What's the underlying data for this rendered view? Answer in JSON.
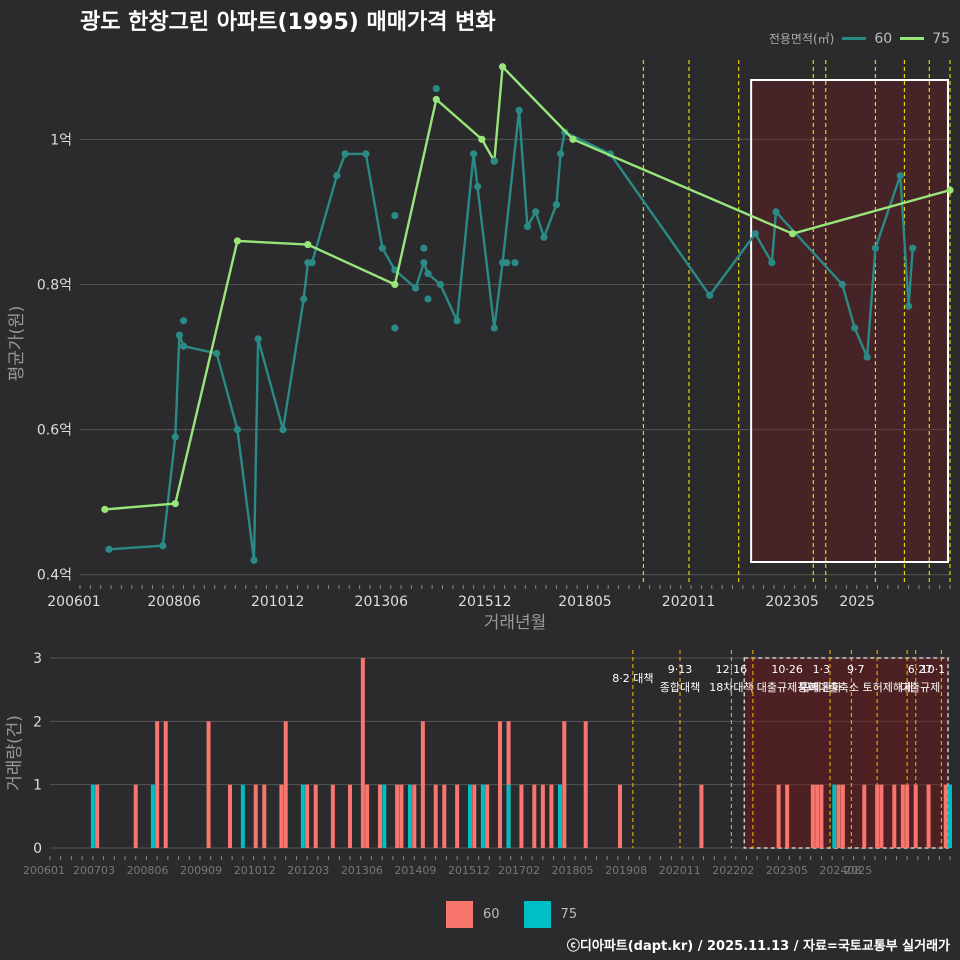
{
  "title": "광도 한창그린 아파트(1995) 매매가격 변화",
  "legend": {
    "caption": "전용면적(㎡)",
    "items": [
      {
        "label": "60",
        "line_color": "#2a8a85",
        "bar_color": "#f8766d"
      },
      {
        "label": "75",
        "line_color": "#98e67a",
        "bar_color": "#00bfc4"
      }
    ]
  },
  "footer": "ⓒ디아파트(dapt.kr) / 2025.11.13 / 자료=국토교통부 실거래가",
  "chart_data": [
    {
      "type": "line",
      "ylabel": "평균가(원)",
      "xlabel": "거래년월",
      "y_ticks": [
        {
          "v": 0.4,
          "label": "0.4억"
        },
        {
          "v": 0.6,
          "label": "0.6억"
        },
        {
          "v": 0.8,
          "label": "0.8억"
        },
        {
          "v": 1.0,
          "label": "1억"
        }
      ],
      "x_ticks": [
        "200601",
        "200806",
        "201012",
        "201306",
        "201512",
        "201805",
        "202011",
        "202305",
        "2025"
      ],
      "ylim": [
        0.39,
        1.13
      ],
      "series": [
        {
          "name": "60",
          "points": [
            [
              2006.7,
              0.435
            ],
            [
              2008.0,
              0.44
            ],
            [
              2008.3,
              0.59
            ],
            [
              2008.4,
              0.73
            ],
            [
              2008.5,
              0.715
            ],
            [
              2009.3,
              0.705
            ],
            [
              2009.8,
              0.6
            ],
            [
              2010.2,
              0.42
            ],
            [
              2010.3,
              0.725
            ],
            [
              2010.9,
              0.6
            ],
            [
              2011.4,
              0.78
            ],
            [
              2011.5,
              0.83
            ],
            [
              2011.6,
              0.83
            ],
            [
              2012.2,
              0.95
            ],
            [
              2012.4,
              0.98
            ],
            [
              2012.9,
              0.98
            ],
            [
              2013.3,
              0.85
            ],
            [
              2013.6,
              0.82
            ],
            [
              2014.1,
              0.795
            ],
            [
              2014.3,
              0.83
            ],
            [
              2014.4,
              0.815
            ],
            [
              2014.7,
              0.8
            ],
            [
              2015.1,
              0.75
            ],
            [
              2015.5,
              0.98
            ],
            [
              2016.0,
              0.74
            ],
            [
              2016.2,
              0.83
            ],
            [
              2016.6,
              1.04
            ],
            [
              2016.8,
              0.88
            ],
            [
              2017.0,
              0.9
            ],
            [
              2017.2,
              0.865
            ],
            [
              2017.5,
              0.91
            ],
            [
              2017.6,
              0.98
            ],
            [
              2017.7,
              1.01
            ],
            [
              2018.8,
              0.98
            ],
            [
              2021.2,
              0.785
            ],
            [
              2022.3,
              0.87
            ],
            [
              2022.7,
              0.83
            ],
            [
              2022.8,
              0.9
            ],
            [
              2024.4,
              0.8
            ],
            [
              2024.7,
              0.74
            ],
            [
              2025.0,
              0.7
            ],
            [
              2025.2,
              0.85
            ],
            [
              2025.8,
              0.95
            ],
            [
              2026.0,
              0.77
            ],
            [
              2026.1,
              0.85
            ]
          ]
        },
        {
          "name": "75",
          "points": [
            [
              2006.6,
              0.49
            ],
            [
              2008.3,
              0.498
            ],
            [
              2009.8,
              0.86
            ],
            [
              2011.5,
              0.855
            ],
            [
              2013.6,
              0.8
            ],
            [
              2014.6,
              1.055
            ],
            [
              2015.7,
              1.0
            ],
            [
              2016.0,
              0.97
            ],
            [
              2016.2,
              1.1
            ],
            [
              2017.9,
              1.0
            ],
            [
              2023.2,
              0.87
            ],
            [
              2027.0,
              0.93
            ]
          ]
        }
      ],
      "scatter_extra": [
        [
          2008.5,
          0.75
        ],
        [
          2013.6,
          0.74
        ],
        [
          2013.6,
          0.895
        ],
        [
          2014.3,
          0.85
        ],
        [
          2014.4,
          0.78
        ],
        [
          2014.6,
          1.07
        ],
        [
          2015.6,
          0.935
        ],
        [
          2016.0,
          0.97
        ],
        [
          2016.3,
          0.83
        ],
        [
          2016.5,
          0.83
        ],
        [
          2017.5,
          0.91
        ]
      ],
      "policy_lines": [
        2019.6,
        2020.7,
        2021.9,
        2023.7,
        2024.0,
        2025.2,
        2025.9,
        2026.5,
        2027.0
      ],
      "highlight_range": [
        2022.2,
        2027.0
      ]
    },
    {
      "type": "bar",
      "ylabel": "거래량(건)",
      "y_ticks": [
        0,
        1,
        2,
        3
      ],
      "x_ticks": [
        "200601",
        "200703",
        "200806",
        "200909",
        "201012",
        "201203",
        "201306",
        "201409",
        "201512",
        "201702",
        "201805",
        "201908",
        "202011",
        "202202",
        "202305",
        "202408",
        "2025"
      ],
      "series": [
        {
          "name": "60",
          "bars": [
            [
              2007.1,
              1
            ],
            [
              2008.0,
              1
            ],
            [
              2008.5,
              2
            ],
            [
              2008.7,
              2
            ],
            [
              2009.7,
              2
            ],
            [
              2010.2,
              1
            ],
            [
              2010.8,
              1
            ],
            [
              2011.0,
              1
            ],
            [
              2011.4,
              1
            ],
            [
              2011.5,
              2
            ],
            [
              2012.0,
              1
            ],
            [
              2012.2,
              1
            ],
            [
              2012.6,
              1
            ],
            [
              2013.0,
              1
            ],
            [
              2013.4,
              1
            ],
            [
              2013.7,
              1
            ],
            [
              2014.1,
              1
            ],
            [
              2014.2,
              1
            ],
            [
              2014.5,
              1
            ],
            [
              2014.7,
              2
            ],
            [
              2015.0,
              1
            ],
            [
              2015.2,
              1
            ],
            [
              2015.5,
              1
            ],
            [
              2015.9,
              1
            ],
            [
              2016.2,
              1
            ],
            [
              2016.5,
              2
            ],
            [
              2016.7,
              2
            ],
            [
              2017.0,
              1
            ],
            [
              2017.3,
              1
            ],
            [
              2017.5,
              1
            ],
            [
              2017.7,
              1
            ],
            [
              2017.9,
              1
            ],
            [
              2018.0,
              2
            ],
            [
              2018.5,
              2
            ],
            [
              2019.3,
              1
            ],
            [
              2021.2,
              1
            ],
            [
              2023.0,
              1
            ],
            [
              2023.2,
              1
            ],
            [
              2023.8,
              1
            ],
            [
              2023.9,
              1
            ],
            [
              2024.0,
              1
            ],
            [
              2024.4,
              1
            ],
            [
              2024.5,
              1
            ],
            [
              2025.0,
              1
            ],
            [
              2025.3,
              1
            ],
            [
              2025.4,
              1
            ],
            [
              2025.7,
              1
            ],
            [
              2025.9,
              1
            ],
            [
              2026.0,
              1
            ],
            [
              2026.2,
              1
            ],
            [
              2026.5,
              1
            ],
            [
              2026.9,
              1
            ],
            [
              2027.0,
              1
            ],
            [
              2013.3,
              3
            ]
          ]
        },
        {
          "name": "75",
          "bars": [
            [
              2007.0,
              1
            ],
            [
              2008.4,
              1
            ],
            [
              2010.5,
              1
            ],
            [
              2011.9,
              1
            ],
            [
              2013.8,
              1
            ],
            [
              2014.4,
              1
            ],
            [
              2015.8,
              1
            ],
            [
              2016.1,
              1
            ],
            [
              2016.7,
              1
            ],
            [
              2017.9,
              1
            ],
            [
              2024.3,
              1
            ],
            [
              2027.0,
              1
            ]
          ]
        }
      ],
      "policy_lines": [
        2019.6,
        2020.7,
        2021.9,
        2022.4,
        2024.2,
        2024.7,
        2025.3,
        2026.0,
        2026.2,
        2026.8
      ],
      "policy_labels": [
        {
          "x": 2019.6,
          "date": "",
          "text": "8·2 대책"
        },
        {
          "x": 2020.7,
          "date": "9·13",
          "text": "종합대책"
        },
        {
          "x": 2021.9,
          "date": "12·16",
          "text": "18차대책"
        },
        {
          "x": 2023.2,
          "date": "10·26",
          "text": "대출규제강화"
        },
        {
          "x": 2024.0,
          "date": "1·3",
          "text": "규제완화"
        },
        {
          "x": 2024.8,
          "date": "9·7",
          "text": "특례대출축소 토허제해제"
        },
        {
          "x": 2026.3,
          "date": "6·27",
          "text": "대출규제"
        },
        {
          "x": 2026.6,
          "date": "10·1",
          "text": ""
        }
      ],
      "highlight_range": [
        2022.2,
        2027.0
      ]
    }
  ]
}
